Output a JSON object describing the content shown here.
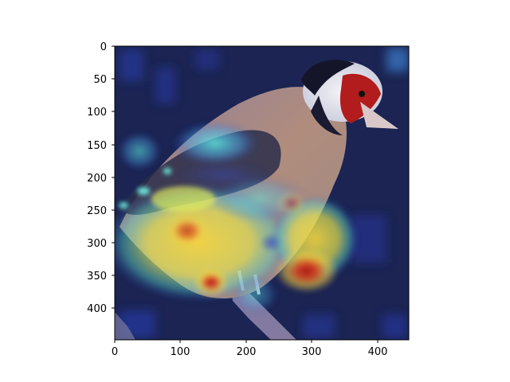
{
  "figure": {
    "description_visible": false,
    "background": "#ffffff"
  },
  "axes": {
    "x_ticks": [
      "0",
      "100",
      "200",
      "300",
      "400"
    ],
    "y_ticks": [
      "0",
      "50",
      "100",
      "150",
      "200",
      "250",
      "300",
      "350",
      "400"
    ],
    "x_range": [
      0,
      448
    ],
    "y_range": [
      0,
      448
    ],
    "y_inverted": true
  },
  "image": {
    "colormap": "jet",
    "overlay": "heatmap",
    "background_color": "#1b2452"
  },
  "colors": {
    "deep_blue": "#1b2452",
    "blue": "#2f3fb8",
    "cyan": "#46e6e0",
    "yellow": "#f2e24a",
    "orange": "#f39a2a",
    "red": "#c21b1b",
    "bird_body": "#a88272",
    "bird_head_white": "#e9e9f1",
    "bird_mask_red": "#b21c1c"
  }
}
